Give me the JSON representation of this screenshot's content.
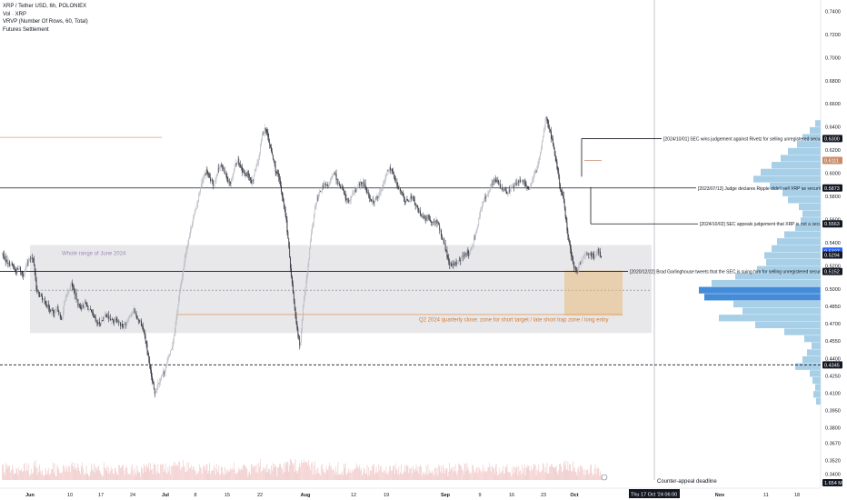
{
  "header": {
    "symbol_line": "XRP / Tether USD, 6h, POLONIEX",
    "indicators": [
      "Vol · XRP",
      "VRVP (Number Of Rows, 60, Total)",
      "Futures Settlement"
    ]
  },
  "annotations": {
    "range_label": "Whole range of June 2024",
    "q2_label": "Q2 2024 quarterly close: zone for short target / late short trap zone / long entry",
    "event_1": "[2024/10/01] SEC wins judgement against Rivetz for selling unregistered securities",
    "event_2": "[2023/07/13] Judge declares Ripple didn't sell XRP as securities",
    "event_3": "[2024/10/02] SEC appeals judgement that XRP is not a security",
    "event_4": "[2020/12/22] Brad Garlinghouse tweets that the SEC is suing him for selling unregistered securities",
    "deadline_label": "Counter-appeal deadline"
  },
  "axis": {
    "crosshair_date": "Thu 17 Oct '24",
    "crosshair_time": "06:00"
  },
  "colors": {
    "up_candle": "#b2b5be",
    "down_candle": "#131722",
    "zone_fill": "#9598a1",
    "q2_zone": "#e8b97a",
    "vrvp_up": "#5fa8d3",
    "vrvp_strong": "#2962ff",
    "accent_label": "#2962ff",
    "price_label_dark": "#131722",
    "price_label_orange": "#c98b6a"
  },
  "chart_data": {
    "type": "candlestick",
    "title": "XRP / Tether USD, 6h, POLONIEX",
    "x_ticks": [
      "Jun",
      "10",
      "17",
      "24",
      "Jul",
      "8",
      "15",
      "22",
      "Aug",
      "12",
      "19",
      "Sep",
      "9",
      "16",
      "23",
      "Oct",
      "Nov",
      "11",
      "18"
    ],
    "y_ticks": [
      "0.7400",
      "0.7200",
      "0.7000",
      "0.6800",
      "0.6600",
      "0.6400",
      "0.6200",
      "0.6000",
      "0.5800",
      "0.5600",
      "0.5400",
      "0.5200",
      "0.5000",
      "0.4850",
      "0.4700",
      "0.4550",
      "0.4400",
      "0.4250",
      "0.4100",
      "0.3950",
      "0.3800",
      "0.3670",
      "0.3520",
      "0.3400"
    ],
    "ylim": [
      0.335,
      0.745
    ],
    "price_labels": [
      {
        "value": "0.6300",
        "style": "dark"
      },
      {
        "value": "0.6111",
        "style": "orange"
      },
      {
        "value": "0.5873",
        "style": "dark"
      },
      {
        "value": "0.5563",
        "style": "dark"
      },
      {
        "value": "0.5327",
        "style": "accent"
      },
      {
        "value": "0.5294",
        "style": "dark"
      },
      {
        "value": "0.5152",
        "style": "dark"
      },
      {
        "value": "0.4345",
        "style": "dark"
      },
      {
        "value": "1.654 M",
        "style": "dark"
      }
    ],
    "key_levels": [
      0.63,
      0.5873,
      0.5563,
      0.5152,
      0.4345
    ],
    "june_range": {
      "high": 0.538,
      "low": 0.462
    },
    "q2_close": 0.478,
    "price_path": [
      [
        0.53,
        0.525,
        0.522,
        0.52,
        0.515,
        0.518,
        0.512,
        0.52,
        0.528,
        0.525,
        0.498,
        0.494,
        0.49,
        0.486,
        0.482,
        0.478,
        0.484,
        0.472,
        0.488,
        0.498,
        0.505,
        0.496,
        0.486,
        0.484,
        0.488,
        0.482,
        0.478,
        0.472,
        0.47,
        0.474,
        0.478,
        0.474,
        0.472,
        0.475,
        0.47,
        0.468,
        0.472,
        0.478,
        0.482,
        0.475
      ],
      [
        0.472,
        0.462,
        0.445,
        0.425,
        0.41,
        0.418,
        0.425,
        0.43,
        0.44,
        0.45,
        0.468,
        0.492,
        0.512,
        0.532,
        0.545,
        0.56,
        0.57,
        0.585,
        0.595,
        0.602,
        0.595,
        0.59,
        0.6,
        0.608,
        0.602,
        0.595,
        0.592,
        0.605,
        0.612,
        0.605,
        0.598,
        0.6,
        0.59,
        0.602,
        0.61,
        0.632,
        0.64,
        0.628,
        0.615,
        0.602
      ],
      [
        0.595,
        0.578,
        0.56,
        0.528,
        0.495,
        0.47,
        0.45,
        0.49,
        0.51,
        0.54,
        0.565,
        0.578,
        0.585,
        0.59,
        0.588,
        0.595,
        0.6,
        0.592,
        0.588,
        0.58,
        0.575,
        0.58,
        0.585,
        0.59,
        0.592,
        0.588,
        0.58,
        0.575,
        0.578,
        0.582,
        0.59,
        0.6,
        0.605,
        0.598,
        0.59,
        0.585,
        0.578,
        0.575,
        0.58,
        0.576
      ],
      [
        0.568,
        0.565,
        0.56,
        0.562,
        0.558,
        0.56,
        0.555,
        0.545,
        0.535,
        0.522,
        0.52,
        0.522,
        0.525,
        0.528,
        0.532,
        0.53,
        0.54,
        0.552,
        0.565,
        0.576,
        0.582,
        0.588,
        0.595,
        0.592,
        0.588,
        0.585,
        0.582,
        0.588,
        0.59,
        0.592,
        0.595,
        0.59,
        0.585,
        0.592,
        0.6,
        0.612,
        0.628,
        0.65,
        0.64,
        0.625
      ],
      [
        0.61,
        0.59,
        0.578,
        0.555,
        0.535,
        0.52,
        0.515,
        0.522,
        0.528,
        0.532,
        0.53,
        0.527,
        0.533,
        0.529
      ]
    ]
  }
}
